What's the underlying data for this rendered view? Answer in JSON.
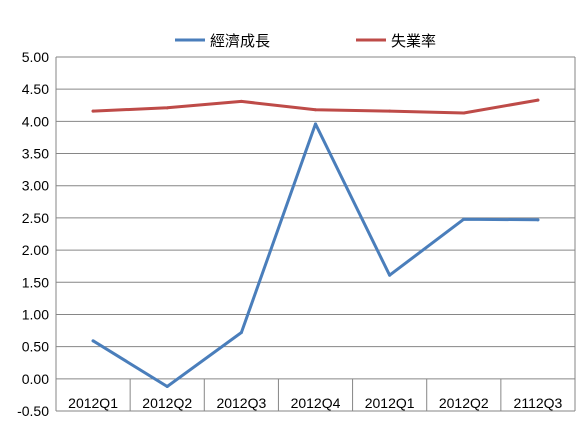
{
  "chart_data": {
    "type": "line",
    "title": "",
    "xlabel": "",
    "ylabel": "",
    "categories": [
      "2012Q1",
      "2012Q2",
      "2012Q3",
      "2012Q4",
      "2012Q1",
      "2012Q2",
      "2112Q3"
    ],
    "ylim": [
      -0.5,
      5.0
    ],
    "ytick_step": 0.5,
    "ytick_labels": [
      "-0.50",
      "0.00",
      "0.50",
      "1.00",
      "1.50",
      "2.00",
      "2.50",
      "3.00",
      "3.50",
      "4.00",
      "4.50",
      "5.00"
    ],
    "grid": "horizontal",
    "legend_position": "top-center",
    "series": [
      {
        "name": "經濟成長",
        "color": "#4a7ebb",
        "values": [
          0.59,
          -0.12,
          0.72,
          3.96,
          1.61,
          2.48,
          2.47
        ]
      },
      {
        "name": "失業率",
        "color": "#be4b48",
        "values": [
          4.16,
          4.21,
          4.31,
          4.18,
          4.16,
          4.13,
          4.33
        ]
      }
    ]
  }
}
